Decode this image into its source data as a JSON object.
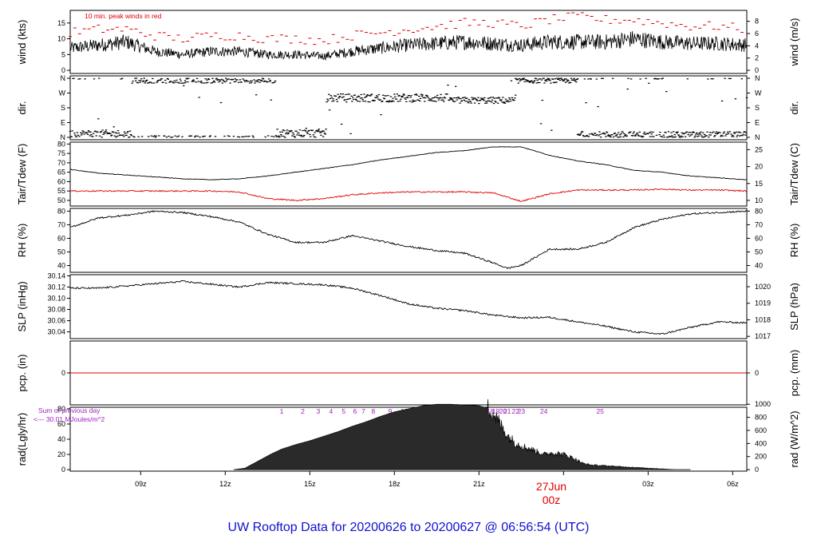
{
  "colors": {
    "main": "#000000",
    "peak": "#e00000",
    "dewpoint": "#e00000",
    "precip": "#e00000",
    "annotation": "#a020c0",
    "title": "#1010d0",
    "date_marker": "#e00000"
  },
  "title": "UW Rooftop Data for 20200626  to  20200627 @ 06:56:54  (UTC)",
  "date_marker": {
    "day": "27Jun",
    "hour": "00z"
  },
  "chart_data": [
    {
      "type": "line",
      "name": "wind",
      "ylabel_left": "wind (kts)",
      "ylabel_right": "wind (m/s)",
      "ylim": [
        -1,
        19
      ],
      "yticks_left": [
        "0",
        "5",
        "10",
        "15"
      ],
      "yticks_right": [
        "0",
        "2",
        "4",
        "6",
        "8"
      ],
      "annotation": "10 min. peak winds in red",
      "x_hours": [
        6.5,
        7.5,
        8.5,
        9.5,
        10.5,
        11.5,
        12.5,
        13.5,
        14.5,
        15.5,
        16.5,
        17.5,
        18.5,
        19.5,
        20.5,
        21.5,
        22.5,
        23.5,
        24.5,
        25.5,
        26.5,
        27.5,
        28.5,
        29.5,
        30.5
      ],
      "speed_kts": [
        7,
        8,
        9,
        6,
        5,
        6,
        6,
        5,
        5,
        4.5,
        6,
        7,
        8,
        8.5,
        9,
        8.5,
        8,
        9,
        9,
        9,
        10,
        9,
        8.5,
        8.5,
        8
      ],
      "peak_kts": [
        12,
        13,
        13,
        11,
        10,
        11,
        11,
        10,
        10,
        9.5,
        11,
        12,
        13,
        14,
        15,
        15,
        14,
        16,
        17,
        16,
        16,
        15,
        14,
        14,
        13
      ]
    },
    {
      "type": "scatter",
      "name": "direction",
      "ylabel_left": "dir.",
      "ylabel_right": "dir.",
      "yticks_left": [
        "N",
        "E",
        "S",
        "W",
        "N"
      ],
      "yticks_right": [
        "N",
        "E",
        "S",
        "W",
        "N"
      ],
      "ylim": [
        0,
        360
      ],
      "segments": [
        {
          "from_hour": 6.5,
          "to_hour": 8.7,
          "center_deg": 20,
          "spread_deg": 25
        },
        {
          "from_hour": 8.7,
          "to_hour": 13.8,
          "center_deg": 350,
          "spread_deg": 20
        },
        {
          "from_hour": 13.8,
          "to_hour": 15.6,
          "center_deg": 25,
          "spread_deg": 25
        },
        {
          "from_hour": 15.6,
          "to_hour": 20.0,
          "center_deg": 240,
          "spread_deg": 25
        },
        {
          "from_hour": 20.0,
          "to_hour": 22.3,
          "center_deg": 225,
          "spread_deg": 20
        },
        {
          "from_hour": 22.3,
          "to_hour": 24.5,
          "center_deg": 345,
          "spread_deg": 15
        },
        {
          "from_hour": 24.5,
          "to_hour": 30.5,
          "center_deg": 15,
          "spread_deg": 20
        }
      ]
    },
    {
      "type": "line",
      "name": "temperature",
      "ylabel_left": "Tair/Tdew (F)",
      "ylabel_right": "Tair/Tdew (C)",
      "ylim": [
        47,
        81
      ],
      "yticks_left": [
        "50",
        "55",
        "60",
        "65",
        "70",
        "75",
        "80"
      ],
      "yticks_right": [
        "10",
        "15",
        "20",
        "25"
      ],
      "x_hours": [
        6.5,
        7.5,
        8.5,
        9.5,
        10.5,
        11.5,
        12.5,
        13.5,
        14.5,
        15.5,
        16.5,
        17.5,
        18.5,
        19.5,
        20.5,
        21.5,
        22.5,
        23.5,
        24.5,
        25.5,
        26.5,
        27.5,
        28.5,
        29.5,
        30.5
      ],
      "air_F": [
        66.5,
        64.5,
        63.5,
        62.5,
        61.5,
        61,
        61.5,
        63,
        65,
        67,
        69,
        71.5,
        73.5,
        75.5,
        76.5,
        78.5,
        78.5,
        74,
        71,
        69,
        66,
        65,
        63,
        62,
        61
      ],
      "dew_F": [
        55,
        55,
        55,
        55,
        55,
        55,
        54.5,
        51,
        50,
        51,
        53,
        54,
        54.5,
        54.5,
        54.5,
        54,
        49.5,
        53.5,
        55.5,
        55.5,
        55.5,
        56,
        55.5,
        55.5,
        55
      ]
    },
    {
      "type": "line",
      "name": "humidity",
      "ylabel_left": "RH (%)",
      "ylabel_right": "RH (%)",
      "ylim": [
        35,
        82
      ],
      "yticks_left": [
        "40",
        "50",
        "60",
        "70",
        "80"
      ],
      "yticks_right": [
        "40",
        "50",
        "60",
        "70",
        "80"
      ],
      "x_hours": [
        6.5,
        7.5,
        8.5,
        9.5,
        10.5,
        11.5,
        12.5,
        13.5,
        14.5,
        15.5,
        16.5,
        17.5,
        18.5,
        19.5,
        20.5,
        21.5,
        22,
        22.5,
        23.5,
        24.5,
        25.5,
        26.5,
        27.5,
        28.5,
        29.5,
        30.5
      ],
      "values": [
        68,
        75,
        77,
        80,
        79,
        76,
        72,
        63,
        57,
        57,
        62,
        58,
        54,
        51,
        49,
        42,
        38,
        40,
        52,
        52,
        57,
        68,
        74,
        78,
        79,
        80
      ]
    },
    {
      "type": "line",
      "name": "pressure",
      "ylabel_left": "SLP (inHg)",
      "ylabel_right": "SLP (hPa)",
      "ylim": [
        30.028,
        30.142
      ],
      "yticks_left": [
        "30.04",
        "30.06",
        "30.08",
        "30.10",
        "30.12",
        "30.14"
      ],
      "yticks_right": [
        "1017",
        "1018",
        "1019",
        "1020"
      ],
      "x_hours": [
        6.5,
        7.5,
        8.5,
        9.5,
        10.5,
        11.5,
        12.5,
        13.5,
        14.5,
        15.5,
        16.5,
        17.5,
        18.5,
        19.5,
        20.5,
        21.5,
        22.5,
        23.5,
        24.5,
        25.5,
        26.5,
        27.5,
        28.5,
        29.5,
        30.5
      ],
      "values": [
        30.118,
        30.118,
        30.122,
        30.126,
        30.13,
        30.125,
        30.12,
        30.128,
        30.126,
        30.124,
        30.118,
        30.105,
        30.09,
        30.082,
        30.078,
        30.07,
        30.065,
        30.066,
        30.058,
        30.05,
        30.04,
        30.036,
        30.048,
        30.058,
        30.056
      ]
    },
    {
      "type": "line",
      "name": "precipitation",
      "ylabel_left": "pcp. (in)",
      "ylabel_right": "pcp. (mm)",
      "ylim": [
        -0.5,
        0.5
      ],
      "yticks_left": [
        "0"
      ],
      "yticks_right": [
        "0"
      ],
      "x_hours": [
        6.5,
        30.5
      ],
      "values": [
        0,
        0
      ]
    },
    {
      "type": "area",
      "name": "radiation",
      "ylabel_left": "rad(Lgly/hr)",
      "ylabel_right": "rad (W/m^2)",
      "ylim": [
        -2,
        82
      ],
      "yticks_left": [
        "0",
        "20",
        "40",
        "60",
        "80"
      ],
      "yticks_right": [
        "0",
        "200",
        "400",
        "600",
        "800",
        "1000"
      ],
      "annotation_lines": [
        "Sum of previous day",
        "<--- 30.01 MJoules/m^2"
      ],
      "hour_labels": [
        "1",
        "2",
        "3",
        "4",
        "5",
        "6",
        "7",
        "8",
        "9",
        "10",
        "11",
        "12",
        "13",
        "14",
        "15",
        "16",
        "17",
        "18",
        "19",
        "20",
        "21",
        "22",
        "23",
        "24",
        "25"
      ],
      "hour_label_x_hours": [
        14.0,
        14.75,
        15.3,
        15.75,
        16.2,
        16.6,
        16.9,
        17.25,
        17.85,
        18.35,
        18.55,
        18.95,
        19.35,
        19.75,
        20.15,
        20.55,
        21.0,
        21.4,
        21.6,
        21.85,
        22.0,
        22.3,
        22.5,
        23.3,
        25.3
      ],
      "x_hours": [
        12.3,
        12.7,
        13.2,
        13.6,
        14.0,
        14.5,
        15.0,
        15.5,
        16.0,
        16.5,
        17.0,
        17.5,
        18.0,
        18.5,
        19.0,
        19.5,
        20.0,
        20.5,
        21.0,
        21.4,
        21.7,
        22.0,
        22.3,
        22.6,
        22.9,
        23.3,
        23.6,
        24.0,
        24.3,
        24.7,
        25.0,
        25.5,
        26.0,
        26.5,
        27.0,
        27.5,
        28.0,
        28.5
      ],
      "values": [
        0,
        2,
        12,
        20,
        27,
        33,
        38,
        44,
        50,
        57,
        63,
        70,
        76,
        80,
        84,
        86,
        86,
        85,
        84,
        80,
        63,
        45,
        35,
        30,
        26,
        20,
        22,
        20,
        16,
        8,
        6,
        5,
        4,
        3,
        2,
        1,
        0,
        0
      ]
    }
  ],
  "x_axis": {
    "start_hour": 6.5,
    "end_hour": 30.5,
    "tick_hours": [
      9,
      12,
      15,
      18,
      21,
      24,
      27,
      30
    ],
    "tick_labels": [
      "09z",
      "12z",
      "15z",
      "18z",
      "21z",
      "",
      "03z",
      "06z"
    ]
  }
}
